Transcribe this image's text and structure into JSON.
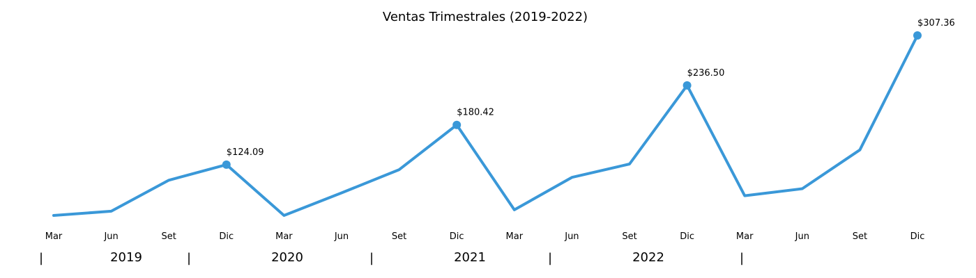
{
  "chart_data": {
    "type": "line",
    "title": "Ventas Trimestrales (2019-2022)",
    "xlabel": "",
    "ylabel": "",
    "grid": false,
    "color": "#3a98d8",
    "x": [
      "Mar",
      "Jun",
      "Set",
      "Dic",
      "Mar",
      "Jun",
      "Set",
      "Dic",
      "Mar",
      "Jun",
      "Set",
      "Dic",
      "Mar",
      "Jun",
      "Set",
      "Dic"
    ],
    "values": [
      52.0,
      58.0,
      102.0,
      124.09,
      52.0,
      84.0,
      117.0,
      180.42,
      60.0,
      106.0,
      125.0,
      236.5,
      80.0,
      90.0,
      145.0,
      307.36
    ],
    "ylim": [
      40,
      320
    ],
    "highlights": [
      {
        "index": 3,
        "label": "$124.09"
      },
      {
        "index": 7,
        "label": "$180.42"
      },
      {
        "index": 11,
        "label": "$236.50"
      },
      {
        "index": 15,
        "label": "$307.36"
      }
    ],
    "years": [
      "2019",
      "2020",
      "2021",
      "2022"
    ],
    "year_separator": "|"
  }
}
